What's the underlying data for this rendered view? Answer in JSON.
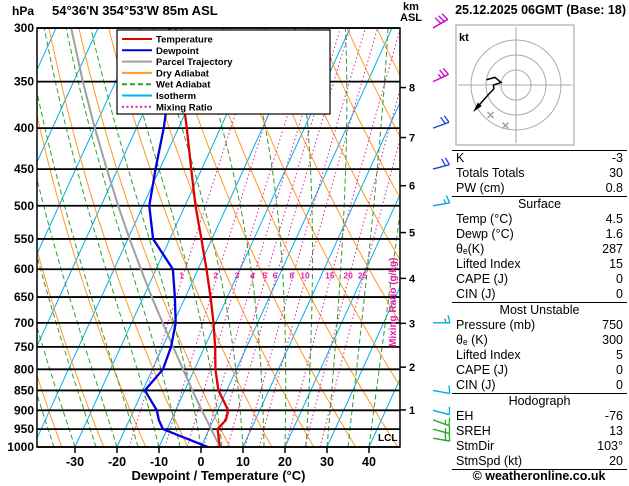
{
  "header": {
    "hpa_label": "hPa",
    "title": "54°36'N 354°53'W 85m ASL",
    "km_label": "km",
    "asl_label": "ASL",
    "datetime": "25.12.2025 06GMT (Base: 18)"
  },
  "axes": {
    "xlabel": "Dewpoint / Temperature (°C)",
    "x_ticks": [
      -30,
      -20,
      -10,
      0,
      10,
      20,
      30,
      40
    ],
    "pressure_ticks": [
      300,
      350,
      400,
      450,
      500,
      550,
      600,
      650,
      700,
      750,
      800,
      850,
      900,
      950,
      1000
    ],
    "km_ticks": [
      1,
      2,
      3,
      4,
      5,
      6,
      7,
      8
    ],
    "lcl_label": "LCL",
    "mixing_axis_label": "Mixing Ratio (g/kg)"
  },
  "legend": [
    {
      "label": "Temperature",
      "key": "temperature",
      "style": "solid"
    },
    {
      "label": "Dewpoint",
      "key": "dewpoint",
      "style": "solid"
    },
    {
      "label": "Parcel Trajectory",
      "key": "parcel",
      "style": "solid"
    },
    {
      "label": "Dry Adiabat",
      "key": "dry_adiabat",
      "style": "solid"
    },
    {
      "label": "Wet Adiabat",
      "key": "wet_adiabat",
      "style": "dashed"
    },
    {
      "label": "Isotherm",
      "key": "isotherm",
      "style": "solid"
    },
    {
      "label": "Mixing Ratio",
      "key": "mixing",
      "style": "dotted"
    }
  ],
  "colors": {
    "temperature": "#e00000",
    "dewpoint": "#0000e0",
    "parcel": "#a0a0a0",
    "dry_adiabat": "#ff9922",
    "wet_adiabat": "#2da02d",
    "isotherm": "#00b0f0",
    "mixing": "#e020a0",
    "axis": "#000000"
  },
  "chart_data": {
    "type": "skewt-log-p",
    "pressure_range_hpa": [
      300,
      1000
    ],
    "temp_tick_range_c": [
      -30,
      40
    ],
    "mixing_ratio_lines_g_kg": [
      1,
      2,
      3,
      4,
      5,
      6,
      8,
      10,
      15,
      20,
      25
    ],
    "isotherm_step_c": 10,
    "dry_adiabat_step_k": 10,
    "wet_adiabat_step_c": 5,
    "sounding": {
      "pressure_hpa": [
        1000,
        950,
        925,
        900,
        850,
        800,
        750,
        700,
        650,
        600,
        550,
        500,
        450,
        400,
        350,
        300
      ],
      "temperature_c": [
        4.5,
        2.0,
        3.0,
        2.5,
        -2.0,
        -5.0,
        -7.5,
        -10.5,
        -14.0,
        -18.0,
        -22.5,
        -27.5,
        -32.5,
        -38.0,
        -44.5,
        -51.5
      ],
      "dewpoint_c": [
        1.6,
        -11.0,
        -13.0,
        -14.5,
        -19.5,
        -17.5,
        -18.0,
        -19.5,
        -22.5,
        -26.0,
        -34.0,
        -38.5,
        -41.0,
        -43.5,
        -47.0,
        -53.0
      ],
      "parcel_c": [
        4.5,
        0.5,
        -1.6,
        -3.8,
        -8.2,
        -12.7,
        -17.5,
        -22.6,
        -28.0,
        -33.6,
        -39.6,
        -45.9,
        -52.6,
        -59.9,
        -67.8,
        -76.4
      ]
    },
    "wind_barbs": [
      {
        "pressure_hpa": 300,
        "speed_kt": 30,
        "dir_deg": 60,
        "color": "#cc00cc"
      },
      {
        "pressure_hpa": 350,
        "speed_kt": 25,
        "dir_deg": 65,
        "color": "#cc00cc"
      },
      {
        "pressure_hpa": 400,
        "speed_kt": 20,
        "dir_deg": 70,
        "color": "#2244dd"
      },
      {
        "pressure_hpa": 450,
        "speed_kt": 20,
        "dir_deg": 75,
        "color": "#2244dd"
      },
      {
        "pressure_hpa": 500,
        "speed_kt": 15,
        "dir_deg": 80,
        "color": "#00aadd"
      },
      {
        "pressure_hpa": 700,
        "speed_kt": 15,
        "dir_deg": 90,
        "color": "#00aadd"
      },
      {
        "pressure_hpa": 850,
        "speed_kt": 10,
        "dir_deg": 100,
        "color": "#00aadd"
      },
      {
        "pressure_hpa": 900,
        "speed_kt": 10,
        "dir_deg": 105,
        "color": "#00aadd"
      },
      {
        "pressure_hpa": 925,
        "speed_kt": 15,
        "dir_deg": 110,
        "color": "#22aa22"
      },
      {
        "pressure_hpa": 950,
        "speed_kt": 15,
        "dir_deg": 105,
        "color": "#22aa22"
      },
      {
        "pressure_hpa": 975,
        "speed_kt": 20,
        "dir_deg": 100,
        "color": "#22aa22"
      }
    ]
  },
  "hodograph": {
    "kt_label": "kt",
    "rings_kt": [
      10,
      20,
      30
    ],
    "trace_uv_kt": [
      [
        -19.7,
        3.5
      ],
      [
        -14.1,
        5.1
      ],
      [
        -9.9,
        1.7
      ],
      [
        -15.0,
        0.0
      ],
      [
        -14.8,
        -2.6
      ],
      [
        -18.8,
        -6.8
      ],
      [
        -26.0,
        -15.0
      ]
    ],
    "markers_uv_kt": [
      [
        -17,
        -20
      ],
      [
        -7,
        -27
      ]
    ]
  },
  "stats": {
    "top": [
      [
        "K",
        "-3"
      ],
      [
        "Totals Totals",
        "30"
      ],
      [
        "PW (cm)",
        "0.8"
      ]
    ],
    "sections": [
      {
        "title": "Surface",
        "rows": [
          [
            "Temp (°C)",
            "4.5"
          ],
          [
            "Dewp (°C)",
            "1.6"
          ],
          [
            "θₑ(K)",
            "287"
          ],
          [
            "Lifted Index",
            "15"
          ],
          [
            "CAPE (J)",
            "0"
          ],
          [
            "CIN (J)",
            "0"
          ]
        ]
      },
      {
        "title": "Most Unstable",
        "rows": [
          [
            "Pressure (mb)",
            "750"
          ],
          [
            "θₑ (K)",
            "300"
          ],
          [
            "Lifted Index",
            "5"
          ],
          [
            "CAPE (J)",
            "0"
          ],
          [
            "CIN (J)",
            "0"
          ]
        ]
      },
      {
        "title": "Hodograph",
        "rows": [
          [
            "EH",
            "-76"
          ],
          [
            "SREH",
            "13"
          ],
          [
            "StmDir",
            "103°"
          ],
          [
            "StmSpd (kt)",
            "20"
          ]
        ]
      }
    ]
  },
  "footer": {
    "credit": "© weatheronline.co.uk"
  }
}
